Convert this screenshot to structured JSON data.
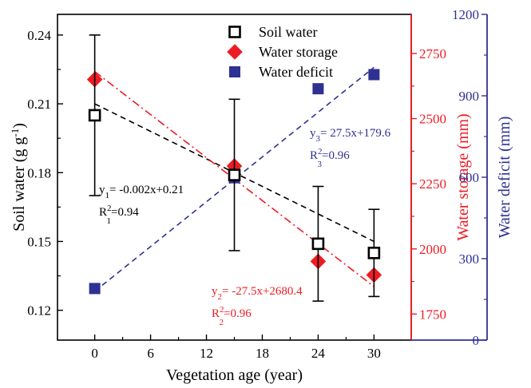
{
  "chart_data": {
    "type": "scatter",
    "title": "",
    "xlabel": "Vegetation age (year)",
    "xlim": [
      -4,
      34
    ],
    "x_ticks": [
      0,
      6,
      12,
      18,
      24,
      30
    ],
    "axes": {
      "left": {
        "label_main": "Soil water (g g",
        "label_sup": "-1",
        "label_end": ")",
        "ylim": [
          0.107,
          0.249
        ],
        "ticks": [
          0.12,
          0.15,
          0.18,
          0.21,
          0.24
        ],
        "tick_labels": [
          "0.12",
          "0.15",
          "0.18",
          "0.21",
          "0.24"
        ],
        "color": "#000000"
      },
      "right1": {
        "label": "Water storage (mm)",
        "ylim": [
          1650,
          2900
        ],
        "ticks": [
          1750,
          2000,
          2250,
          2500,
          2750
        ],
        "tick_labels": [
          "1750",
          "2000",
          "2250",
          "2500",
          "2750"
        ],
        "color": "#ed1c24"
      },
      "right2": {
        "label": "Water deficit (mm)",
        "ylim": [
          0,
          1200
        ],
        "ticks": [
          0,
          300,
          600,
          900,
          1200
        ],
        "tick_labels": [
          "0",
          "300",
          "600",
          "900",
          "1200"
        ],
        "color": "#2e3192"
      }
    },
    "series": [
      {
        "name": "Soil water",
        "axis": "left",
        "marker": "open-square",
        "color": "#000000",
        "x": [
          0,
          15,
          24,
          30
        ],
        "y": [
          0.205,
          0.179,
          0.149,
          0.145
        ],
        "err": [
          0.035,
          0.033,
          0.025,
          0.019
        ],
        "fit": {
          "slope": -0.002,
          "intercept": 0.21,
          "x_range": [
            0,
            30
          ],
          "style": "dashed"
        }
      },
      {
        "name": "Water storage",
        "axis": "right1",
        "marker": "diamond",
        "color": "#ed1c24",
        "x": [
          0,
          15,
          24,
          30
        ],
        "y": [
          2650,
          2318,
          1952,
          1900
        ],
        "fit": {
          "slope": -27.5,
          "intercept": 2680.4,
          "x_range": [
            0,
            30
          ],
          "style": "dash-dot"
        }
      },
      {
        "name": "Water deficit",
        "axis": "right2",
        "marker": "filled-square",
        "color": "#2e3192",
        "x": [
          0,
          15,
          24,
          30
        ],
        "y": [
          190,
          598,
          926,
          978
        ],
        "fit": {
          "slope": 27.5,
          "intercept": 179.6,
          "x_range": [
            0,
            30
          ],
          "style": "dashed"
        }
      }
    ],
    "annotations": [
      {
        "series": 0,
        "eq_prefix": "y",
        "eq_sub": "1",
        "eq_rest": "= -0.002x+0.21",
        "r2_prefix": "R",
        "r2_sup": "2",
        "r2_sub": "1",
        "r2_rest": "=0.94",
        "color": "#000000"
      },
      {
        "series": 1,
        "eq_prefix": "y",
        "eq_sub": "2",
        "eq_rest": "= -27.5x+2680.4",
        "r2_prefix": "R",
        "r2_sup": "2",
        "r2_sub": "2",
        "r2_rest": "=0.96",
        "color": "#ed1c24"
      },
      {
        "series": 2,
        "eq_prefix": "y",
        "eq_sub": "3",
        "eq_rest": "= 27.5x+179.6",
        "r2_prefix": "R",
        "r2_sup": "2",
        "r2_sub": "3",
        "r2_rest": "=0.96",
        "color": "#2e3192"
      }
    ],
    "legend": {
      "placement": "top-center",
      "entries": [
        "Soil water",
        "Water storage",
        "Water deficit"
      ]
    }
  }
}
